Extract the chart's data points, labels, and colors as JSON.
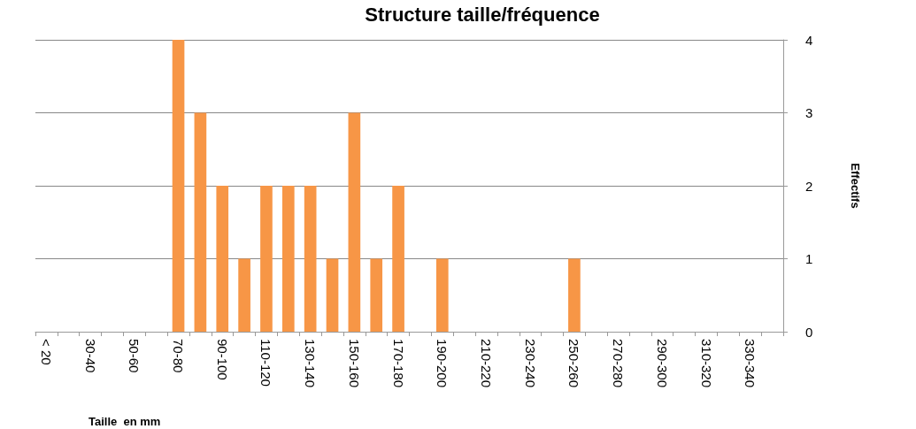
{
  "chart_data": {
    "type": "bar",
    "title": "Structure taille/fréquence",
    "xlabel": "Taille  en mm",
    "ylabel": "Effectifs",
    "categories": [
      "< 20",
      null,
      "30-40",
      null,
      "50-60",
      null,
      "70-80",
      null,
      "90-100",
      null,
      "110-120",
      null,
      "130-140",
      null,
      "150-160",
      null,
      "170-180",
      null,
      "190-200",
      null,
      "210-220",
      null,
      "230-240",
      null,
      "250-260",
      null,
      "270-280",
      null,
      "290-300",
      null,
      "310-320",
      null,
      "330-340",
      null
    ],
    "values": [
      0,
      0,
      0,
      0,
      0,
      0,
      4,
      3,
      2,
      1,
      2,
      2,
      2,
      1,
      3,
      1,
      2,
      0,
      1,
      0,
      0,
      0,
      0,
      0,
      1,
      0,
      0,
      0,
      0,
      0,
      0,
      0,
      0,
      0
    ],
    "color": "#f79646",
    "ylim": [
      0,
      4
    ],
    "yticks": [
      0,
      1,
      2,
      3,
      4
    ],
    "grid": "y"
  }
}
